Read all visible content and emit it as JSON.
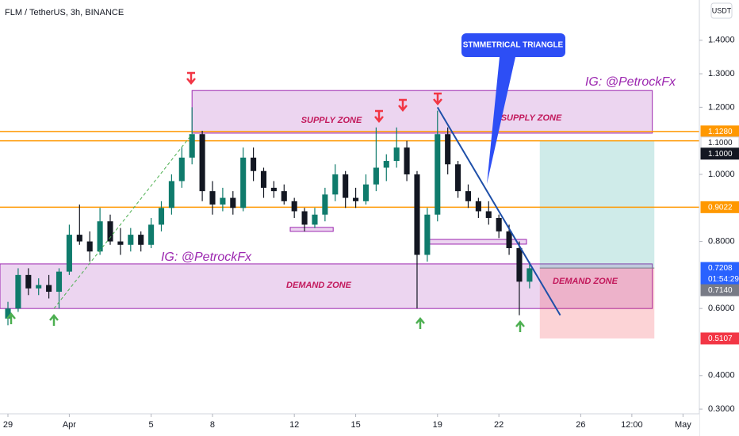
{
  "chart_data": {
    "type": "candlestick",
    "title": "FLM / TetherUS, 3h, BINANCE",
    "currency": "USDT",
    "up_color": "#0f7b6c",
    "down_color": "#131722",
    "grid": false,
    "x": [
      0,
      0.5,
      1,
      1.5,
      2,
      2.5,
      3,
      3.5,
      4,
      4.5,
      5,
      5.5,
      6,
      6.5,
      7,
      7.5,
      8,
      8.5,
      9,
      9.5,
      10,
      10.5,
      11,
      11.5,
      12,
      12.5,
      13,
      13.5,
      14,
      14.5,
      15,
      15.5,
      16,
      16.5,
      17,
      17.5,
      18,
      18.5,
      19,
      19.5,
      20,
      20.5,
      21,
      21.5,
      22,
      22.5,
      23,
      23.5,
      24,
      24.5,
      25,
      25.5
    ],
    "ohlc": [
      [
        0.57,
        0.62,
        0.55,
        0.6
      ],
      [
        0.6,
        0.72,
        0.59,
        0.7
      ],
      [
        0.7,
        0.72,
        0.64,
        0.66
      ],
      [
        0.66,
        0.69,
        0.64,
        0.67
      ],
      [
        0.67,
        0.7,
        0.63,
        0.65
      ],
      [
        0.65,
        0.72,
        0.6,
        0.71
      ],
      [
        0.71,
        0.85,
        0.7,
        0.82
      ],
      [
        0.82,
        0.91,
        0.79,
        0.8
      ],
      [
        0.8,
        0.83,
        0.74,
        0.77
      ],
      [
        0.77,
        0.9,
        0.76,
        0.86
      ],
      [
        0.86,
        0.88,
        0.79,
        0.8
      ],
      [
        0.8,
        0.84,
        0.76,
        0.79
      ],
      [
        0.79,
        0.84,
        0.77,
        0.82
      ],
      [
        0.82,
        0.83,
        0.77,
        0.79
      ],
      [
        0.79,
        0.87,
        0.78,
        0.85
      ],
      [
        0.85,
        0.92,
        0.83,
        0.9
      ],
      [
        0.9,
        1.0,
        0.88,
        0.98
      ],
      [
        0.98,
        1.08,
        0.96,
        1.05
      ],
      [
        1.05,
        1.2,
        1.03,
        1.12
      ],
      [
        1.12,
        1.13,
        0.92,
        0.95
      ],
      [
        0.95,
        0.98,
        0.88,
        0.91
      ],
      [
        0.91,
        0.96,
        0.89,
        0.93
      ],
      [
        0.93,
        0.95,
        0.88,
        0.9
      ],
      [
        0.9,
        1.08,
        0.89,
        1.05
      ],
      [
        1.05,
        1.08,
        0.98,
        1.01
      ],
      [
        1.01,
        1.02,
        0.93,
        0.96
      ],
      [
        0.96,
        0.98,
        0.93,
        0.95
      ],
      [
        0.95,
        0.97,
        0.91,
        0.92
      ],
      [
        0.92,
        0.93,
        0.87,
        0.89
      ],
      [
        0.89,
        0.9,
        0.83,
        0.85
      ],
      [
        0.85,
        0.9,
        0.84,
        0.88
      ],
      [
        0.88,
        0.96,
        0.86,
        0.94
      ],
      [
        0.94,
        1.03,
        0.92,
        1.0
      ],
      [
        1.0,
        1.01,
        0.9,
        0.93
      ],
      [
        0.93,
        0.96,
        0.9,
        0.92
      ],
      [
        0.92,
        1.0,
        0.91,
        0.97
      ],
      [
        0.97,
        1.14,
        0.95,
        1.02
      ],
      [
        1.02,
        1.06,
        0.98,
        1.04
      ],
      [
        1.04,
        1.14,
        1.02,
        1.08
      ],
      [
        1.08,
        1.1,
        0.98,
        1.0
      ],
      [
        1.0,
        1.01,
        0.6,
        0.76
      ],
      [
        0.76,
        0.9,
        0.74,
        0.88
      ],
      [
        0.88,
        1.19,
        0.86,
        1.12
      ],
      [
        1.12,
        1.14,
        1.0,
        1.03
      ],
      [
        1.03,
        1.04,
        0.93,
        0.95
      ],
      [
        0.95,
        0.97,
        0.9,
        0.92
      ],
      [
        0.92,
        0.93,
        0.87,
        0.89
      ],
      [
        0.89,
        0.92,
        0.85,
        0.87
      ],
      [
        0.87,
        0.88,
        0.81,
        0.83
      ],
      [
        0.83,
        0.85,
        0.76,
        0.78
      ],
      [
        0.78,
        0.8,
        0.58,
        0.68
      ],
      [
        0.68,
        0.74,
        0.66,
        0.72
      ]
    ],
    "xlim": [
      -0.388,
      33.8
    ],
    "ylim": [
      0.286,
      1.52
    ],
    "xticks": [
      {
        "value": 0,
        "label": "29"
      },
      {
        "value": 3,
        "label": "Apr"
      },
      {
        "value": 7,
        "label": "5"
      },
      {
        "value": 10,
        "label": "8"
      },
      {
        "value": 14,
        "label": "12"
      },
      {
        "value": 17,
        "label": "15"
      },
      {
        "value": 21,
        "label": "19"
      },
      {
        "value": 24,
        "label": "22"
      },
      {
        "value": 28,
        "label": "26"
      },
      {
        "value": 30.5,
        "label": "12:00"
      },
      {
        "value": 33,
        "label": "May"
      }
    ],
    "yticks": [
      {
        "value": 1.4,
        "label": "1.4000"
      },
      {
        "value": 1.3,
        "label": "1.3000"
      },
      {
        "value": 1.2,
        "label": "1.2000"
      },
      {
        "value": 1.0,
        "label": "1.0000"
      },
      {
        "value": 0.8,
        "label": "0.8000"
      },
      {
        "value": 0.6,
        "label": "0.6000"
      },
      {
        "value": 0.4,
        "label": "0.4000"
      },
      {
        "value": 0.3,
        "label": "0.3000"
      }
    ],
    "hlines": [
      {
        "value": 1.128,
        "color": "#ff9800"
      },
      {
        "value": 1.1,
        "color": "#ff9800"
      },
      {
        "value": 0.9022,
        "color": "#ff9800"
      }
    ],
    "price_labels": [
      {
        "value": 1.128,
        "label": "1.1280",
        "color": "#ff9800"
      },
      {
        "value": 1.1,
        "label": "1.1000",
        "color": "#ffffff"
      },
      {
        "value": 1.1,
        "label": "1.1000",
        "color": "#131722"
      },
      {
        "value": 0.9022,
        "label": "0.9022",
        "color": "#ff9800"
      },
      {
        "value": 0.7208,
        "label": "0.7208",
        "color": "#2962ff",
        "countdown": "01:54:29"
      },
      {
        "value": 0.714,
        "label": "0.7140",
        "color": "#787b86"
      },
      {
        "value": 0.5107,
        "label": "0.5107",
        "color": "#f23645"
      }
    ],
    "zones": [
      {
        "x": [
          9,
          31.5
        ],
        "y": [
          1.123,
          1.25
        ]
      },
      {
        "x": [
          -0.4,
          31.5
        ],
        "y": [
          0.6,
          0.733
        ]
      },
      {
        "x": [
          13.8,
          15.9
        ],
        "y": [
          0.83,
          0.842
        ]
      },
      {
        "x": [
          20.6,
          25.35
        ],
        "y": [
          0.792,
          0.806
        ]
      }
    ],
    "trendlines": [
      {
        "x": [
          2.25,
          9
        ],
        "y": [
          0.6,
          1.12
        ],
        "color": "#4caf50",
        "dashed": true
      },
      {
        "x": [
          21,
          27
        ],
        "y": [
          1.2,
          0.58
        ],
        "color": "#1e4fa8",
        "dashed": false
      }
    ],
    "position": {
      "x": [
        26,
        31.6
      ],
      "target": 1.1,
      "entry": 0.7208,
      "stop": 0.5107
    },
    "texts": [
      "SUPPLY ZONE",
      "SUPPLY ZONE",
      "IG: @PetrockFx",
      "IG: @PetrockFx",
      "DEMAND ZONE",
      "DEMAND ZONE",
      "STMMETRICAL TRIANGLE"
    ]
  }
}
